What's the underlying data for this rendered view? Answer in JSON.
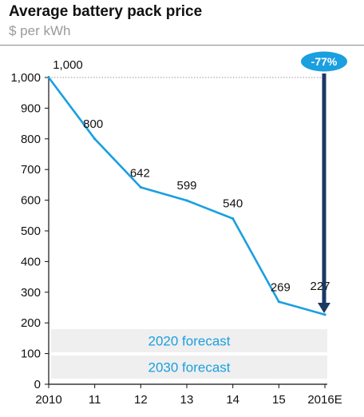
{
  "chart_data": {
    "type": "line",
    "title": "Average battery pack price",
    "subtitle": "$ per kWh",
    "x": [
      "2010",
      "11",
      "12",
      "13",
      "14",
      "15",
      "2016E"
    ],
    "values": [
      1000,
      800,
      642,
      599,
      540,
      269,
      227
    ],
    "data_labels": [
      "1,000",
      "800",
      "642",
      "599",
      "540",
      "269",
      "227"
    ],
    "ylim": [
      0,
      1000
    ],
    "yticks": [
      0,
      100,
      200,
      300,
      400,
      500,
      600,
      700,
      800,
      900,
      1000
    ],
    "forecast_bands": [
      "2020 forecast",
      "2030 forecast"
    ],
    "change_badge": "-77%",
    "colors": {
      "line": "#1a9fe0",
      "arrow": "#1b3764",
      "badge": "#1a9fe0",
      "band": "#efefef",
      "band_text": "#1a9fe0"
    }
  }
}
